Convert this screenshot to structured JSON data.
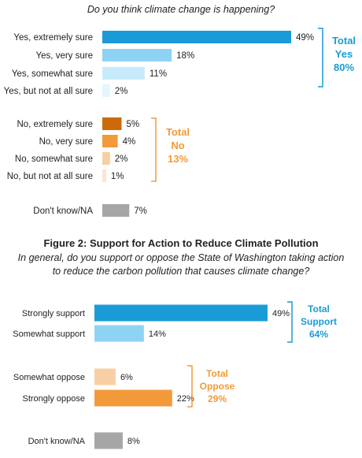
{
  "chart_data": [
    {
      "type": "bar",
      "orientation": "horizontal",
      "title": "",
      "subtitle": "Do you think climate change is happening?",
      "categories": [
        "Yes, extremely sure",
        "Yes, very sure",
        "Yes, somewhat sure",
        "Yes, but not at all sure",
        "No, extremely sure",
        "No, very sure",
        "No, somewhat sure",
        "No, but not at all sure",
        "Don't know/NA"
      ],
      "values": [
        49,
        18,
        11,
        2,
        5,
        4,
        2,
        1,
        7
      ],
      "value_labels": [
        "49%",
        "18%",
        "11%",
        "2%",
        "5%",
        "4%",
        "2%",
        "1%",
        "7%"
      ],
      "colors": [
        "#1a9bd7",
        "#8fd3f4",
        "#c7ebfb",
        "#e3f5fd",
        "#cc6a0a",
        "#f29a3a",
        "#f8cfa5",
        "#fbe6d0",
        "#a6a6a6"
      ],
      "groups": [
        {
          "lines": [
            "Total",
            "Yes",
            "80%"
          ],
          "color": "#1a9bd7"
        },
        {
          "lines": [
            "Total",
            "No",
            "13%"
          ],
          "color": "#f29a3a"
        }
      ]
    },
    {
      "type": "bar",
      "orientation": "horizontal",
      "title": "Figure 2: Support for Action to Reduce Climate Pollution",
      "subtitle_lines": [
        "In general, do you support or oppose the State of Washington taking action",
        "to reduce the carbon pollution that causes climate change?"
      ],
      "categories": [
        "Strongly support",
        "Somewhat support",
        "Somewhat oppose",
        "Strongly oppose",
        "Don't know/NA"
      ],
      "values": [
        49,
        14,
        6,
        22,
        8
      ],
      "value_labels": [
        "49%",
        "14%",
        "6%",
        "22%",
        "8%"
      ],
      "colors": [
        "#1a9bd7",
        "#8fd3f4",
        "#f8cfa5",
        "#f29a3a",
        "#a6a6a6"
      ],
      "groups": [
        {
          "lines": [
            "Total",
            "Support",
            "64%"
          ],
          "color": "#1a9bd7"
        },
        {
          "lines": [
            "Total",
            "Oppose",
            "29%"
          ],
          "color": "#f29a3a"
        }
      ]
    }
  ]
}
